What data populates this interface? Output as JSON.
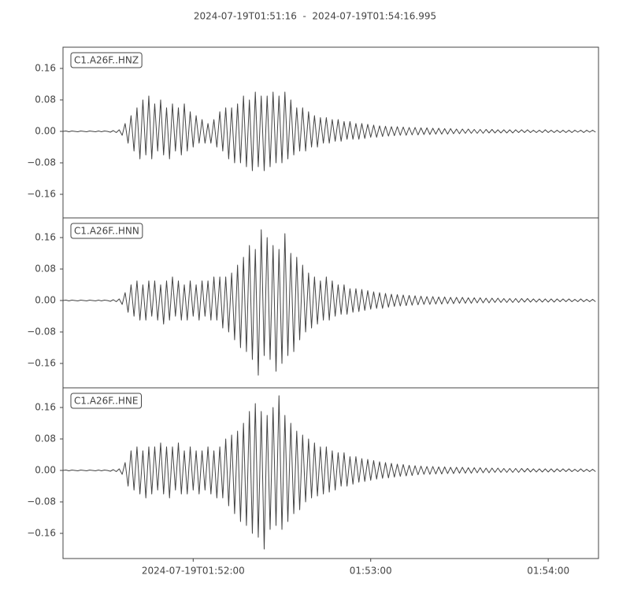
{
  "chart_data": [
    {
      "type": "line",
      "title": "2024-07-19T01:51:16  -  2024-07-19T01:54:16.995",
      "label": "C1.A26F..HNZ",
      "x": [
        0,
        1,
        2,
        3,
        4,
        5,
        6,
        7,
        8,
        9,
        10,
        11,
        12,
        13,
        14,
        15,
        16,
        17,
        18,
        19,
        20,
        21,
        22,
        23,
        24,
        25,
        26,
        27,
        28,
        29,
        30,
        31,
        32,
        33,
        34,
        35,
        36,
        37,
        38,
        39,
        40,
        41,
        42,
        43,
        44,
        45,
        46,
        47,
        48,
        49,
        50,
        51,
        52,
        53,
        54,
        55,
        56,
        57,
        58,
        59,
        60,
        61,
        62,
        63,
        64,
        65,
        66,
        67,
        68,
        69,
        70,
        71,
        72,
        73,
        74,
        75,
        76,
        77,
        78,
        79,
        80,
        81,
        82,
        83,
        84,
        85,
        86,
        87,
        88,
        89,
        90,
        91,
        92,
        93,
        94,
        95,
        96,
        97,
        98,
        99,
        100,
        101,
        102,
        103,
        104,
        105,
        106,
        107,
        108,
        109,
        110,
        111,
        112,
        113,
        114,
        115,
        116,
        117,
        118,
        119,
        120,
        121,
        122,
        123,
        124,
        125,
        126,
        127,
        128,
        129,
        130,
        131,
        132,
        133,
        134,
        135,
        136,
        137,
        138,
        139,
        140,
        141,
        142,
        143,
        144,
        145,
        146,
        147,
        148,
        149,
        150,
        151,
        152,
        153,
        154,
        155,
        156,
        157,
        158,
        159,
        160,
        161,
        162,
        163,
        164,
        165,
        166,
        167,
        168,
        169,
        170,
        171,
        172,
        173,
        174,
        175,
        176,
        177,
        178,
        179,
        180
      ],
      "series": [
        {
          "color": "#444444",
          "values": [
            0,
            0.001,
            -0.001,
            0.001,
            0,
            -0.001,
            0.001,
            0,
            -0.001,
            0.001,
            0,
            -0.001,
            0.001,
            -0.001,
            0.001,
            0,
            -0.002,
            0.002,
            -0.003,
            0.004,
            -0.01,
            0.02,
            -0.03,
            0.04,
            -0.05,
            0.06,
            -0.07,
            0.08,
            -0.06,
            0.09,
            -0.07,
            0.07,
            -0.05,
            0.08,
            -0.06,
            0.06,
            -0.07,
            0.07,
            -0.05,
            0.06,
            -0.06,
            0.07,
            -0.05,
            0.05,
            -0.04,
            0.04,
            -0.03,
            0.03,
            -0.03,
            0.02,
            -0.03,
            0.03,
            -0.04,
            0.05,
            -0.05,
            0.06,
            -0.07,
            0.06,
            -0.08,
            0.07,
            -0.08,
            0.09,
            -0.09,
            0.08,
            -0.1,
            0.1,
            -0.09,
            0.09,
            -0.1,
            0.09,
            -0.09,
            0.1,
            -0.08,
            0.09,
            -0.08,
            0.1,
            -0.07,
            0.08,
            -0.06,
            0.06,
            -0.05,
            0.06,
            -0.05,
            0.05,
            -0.04,
            0.04,
            -0.04,
            0.035,
            -0.03,
            0.035,
            -0.03,
            0.03,
            -0.025,
            0.03,
            -0.025,
            0.025,
            -0.02,
            0.025,
            -0.02,
            0.02,
            -0.02,
            0.02,
            -0.018,
            0.018,
            -0.015,
            0.016,
            -0.015,
            0.014,
            -0.013,
            0.013,
            -0.012,
            0.012,
            -0.011,
            0.012,
            -0.01,
            0.011,
            -0.01,
            0.01,
            -0.009,
            0.01,
            -0.009,
            0.009,
            -0.008,
            0.009,
            -0.008,
            0.008,
            -0.007,
            0.008,
            -0.007,
            0.007,
            -0.007,
            0.007,
            -0.006,
            0.006,
            -0.006,
            0.006,
            -0.005,
            0.006,
            -0.005,
            0.005,
            -0.005,
            0.005,
            -0.005,
            0.005,
            -0.004,
            0.005,
            -0.004,
            0.004,
            -0.004,
            0.004,
            -0.004,
            0.004,
            -0.004,
            0.004,
            -0.003,
            0.004,
            -0.003,
            0.004,
            -0.003,
            0.003,
            -0.003,
            0.003,
            -0.003,
            0.004,
            -0.003,
            0.003,
            -0.003,
            0.003,
            -0.003,
            0.003,
            -0.003,
            0.003,
            -0.003,
            0.003,
            -0.002,
            0.003,
            -0.003,
            0.003,
            -0.002,
            0.003,
            -0.002
          ]
        }
      ],
      "xlim": [
        0,
        180.995
      ],
      "ylim": [
        -0.22,
        0.214
      ],
      "yticks": [
        0.16,
        0.08,
        {
          "value": 0,
          "label": "0.00"
        },
        {
          "value": -0.08,
          "label": "−0.08"
        },
        {
          "value": -0.16,
          "label": "−0.16"
        }
      ]
    },
    {
      "type": "line",
      "label": "C1.A26F..HNN",
      "x": [
        0,
        1,
        2,
        3,
        4,
        5,
        6,
        7,
        8,
        9,
        10,
        11,
        12,
        13,
        14,
        15,
        16,
        17,
        18,
        19,
        20,
        21,
        22,
        23,
        24,
        25,
        26,
        27,
        28,
        29,
        30,
        31,
        32,
        33,
        34,
        35,
        36,
        37,
        38,
        39,
        40,
        41,
        42,
        43,
        44,
        45,
        46,
        47,
        48,
        49,
        50,
        51,
        52,
        53,
        54,
        55,
        56,
        57,
        58,
        59,
        60,
        61,
        62,
        63,
        64,
        65,
        66,
        67,
        68,
        69,
        70,
        71,
        72,
        73,
        74,
        75,
        76,
        77,
        78,
        79,
        80,
        81,
        82,
        83,
        84,
        85,
        86,
        87,
        88,
        89,
        90,
        91,
        92,
        93,
        94,
        95,
        96,
        97,
        98,
        99,
        100,
        101,
        102,
        103,
        104,
        105,
        106,
        107,
        108,
        109,
        110,
        111,
        112,
        113,
        114,
        115,
        116,
        117,
        118,
        119,
        120,
        121,
        122,
        123,
        124,
        125,
        126,
        127,
        128,
        129,
        130,
        131,
        132,
        133,
        134,
        135,
        136,
        137,
        138,
        139,
        140,
        141,
        142,
        143,
        144,
        145,
        146,
        147,
        148,
        149,
        150,
        151,
        152,
        153,
        154,
        155,
        156,
        157,
        158,
        159,
        160,
        161,
        162,
        163,
        164,
        165,
        166,
        167,
        168,
        169,
        170,
        171,
        172,
        173,
        174,
        175,
        176,
        177,
        178,
        179,
        180
      ],
      "series": [
        {
          "color": "#444444",
          "values": [
            0,
            0.001,
            -0.001,
            0.001,
            0,
            -0.001,
            0.001,
            0,
            -0.001,
            0.001,
            0,
            -0.001,
            0.001,
            -0.001,
            0.001,
            0,
            -0.002,
            0.002,
            -0.003,
            0.004,
            -0.01,
            0.02,
            -0.03,
            0.04,
            -0.04,
            0.05,
            -0.05,
            0.04,
            -0.05,
            0.05,
            -0.04,
            0.05,
            -0.05,
            0.04,
            -0.06,
            0.05,
            -0.05,
            0.06,
            -0.04,
            0.05,
            -0.05,
            0.04,
            -0.05,
            0.05,
            -0.04,
            0.04,
            -0.05,
            0.05,
            -0.04,
            0.05,
            -0.05,
            0.06,
            -0.05,
            0.06,
            -0.07,
            0.06,
            -0.08,
            0.07,
            -0.1,
            0.09,
            -0.12,
            0.11,
            -0.13,
            0.14,
            -0.15,
            0.13,
            -0.19,
            0.18,
            -0.14,
            0.16,
            -0.15,
            0.14,
            -0.18,
            0.13,
            -0.16,
            0.17,
            -0.14,
            0.12,
            -0.13,
            0.11,
            -0.1,
            0.09,
            -0.08,
            0.07,
            -0.07,
            0.06,
            -0.06,
            0.05,
            -0.05,
            0.06,
            -0.05,
            0.05,
            -0.04,
            0.04,
            -0.035,
            0.04,
            -0.035,
            0.03,
            -0.03,
            0.03,
            -0.028,
            0.028,
            -0.025,
            0.025,
            -0.022,
            0.022,
            -0.02,
            0.02,
            -0.02,
            0.018,
            -0.017,
            0.016,
            -0.015,
            0.015,
            -0.014,
            0.014,
            -0.013,
            0.013,
            -0.012,
            0.012,
            -0.011,
            0.011,
            -0.01,
            0.01,
            -0.01,
            0.01,
            -0.009,
            0.009,
            -0.009,
            0.009,
            -0.008,
            0.008,
            -0.008,
            0.008,
            -0.007,
            0.008,
            -0.007,
            0.007,
            -0.007,
            0.007,
            -0.006,
            0.007,
            -0.006,
            0.006,
            -0.006,
            0.006,
            -0.005,
            0.006,
            -0.005,
            0.005,
            -0.005,
            0.005,
            -0.005,
            0.005,
            -0.005,
            0.005,
            -0.004,
            0.005,
            -0.004,
            0.004,
            -0.004,
            0.004,
            -0.004,
            0.004,
            -0.004,
            0.004,
            -0.004,
            0.004,
            -0.003,
            0.004,
            -0.003,
            0.004,
            -0.003,
            0.003,
            -0.003,
            0.004,
            -0.003,
            0.003,
            -0.003,
            0.003,
            -0.003
          ]
        }
      ],
      "xlim": [
        0,
        180.995
      ],
      "ylim": [
        -0.222,
        0.21
      ],
      "yticks": [
        0.16,
        0.08,
        {
          "value": 0,
          "label": "0.00"
        },
        {
          "value": -0.08,
          "label": "−0.08"
        },
        {
          "value": -0.16,
          "label": "−0.16"
        }
      ]
    },
    {
      "type": "line",
      "label": "C1.A26F..HNE",
      "x": [
        0,
        1,
        2,
        3,
        4,
        5,
        6,
        7,
        8,
        9,
        10,
        11,
        12,
        13,
        14,
        15,
        16,
        17,
        18,
        19,
        20,
        21,
        22,
        23,
        24,
        25,
        26,
        27,
        28,
        29,
        30,
        31,
        32,
        33,
        34,
        35,
        36,
        37,
        38,
        39,
        40,
        41,
        42,
        43,
        44,
        45,
        46,
        47,
        48,
        49,
        50,
        51,
        52,
        53,
        54,
        55,
        56,
        57,
        58,
        59,
        60,
        61,
        62,
        63,
        64,
        65,
        66,
        67,
        68,
        69,
        70,
        71,
        72,
        73,
        74,
        75,
        76,
        77,
        78,
        79,
        80,
        81,
        82,
        83,
        84,
        85,
        86,
        87,
        88,
        89,
        90,
        91,
        92,
        93,
        94,
        95,
        96,
        97,
        98,
        99,
        100,
        101,
        102,
        103,
        104,
        105,
        106,
        107,
        108,
        109,
        110,
        111,
        112,
        113,
        114,
        115,
        116,
        117,
        118,
        119,
        120,
        121,
        122,
        123,
        124,
        125,
        126,
        127,
        128,
        129,
        130,
        131,
        132,
        133,
        134,
        135,
        136,
        137,
        138,
        139,
        140,
        141,
        142,
        143,
        144,
        145,
        146,
        147,
        148,
        149,
        150,
        151,
        152,
        153,
        154,
        155,
        156,
        157,
        158,
        159,
        160,
        161,
        162,
        163,
        164,
        165,
        166,
        167,
        168,
        169,
        170,
        171,
        172,
        173,
        174,
        175,
        176,
        177,
        178,
        179,
        180
      ],
      "series": [
        {
          "color": "#444444",
          "values": [
            0,
            0.001,
            -0.001,
            0.001,
            0,
            -0.001,
            0.001,
            0,
            -0.001,
            0.001,
            0,
            -0.001,
            0.001,
            -0.001,
            0.001,
            0,
            -0.002,
            0.002,
            -0.003,
            0.004,
            -0.01,
            0.02,
            -0.04,
            0.05,
            -0.05,
            0.06,
            -0.06,
            0.05,
            -0.07,
            0.06,
            -0.06,
            0.06,
            -0.05,
            0.07,
            -0.06,
            0.06,
            -0.07,
            0.06,
            -0.05,
            0.07,
            -0.06,
            0.05,
            -0.06,
            0.06,
            -0.05,
            0.05,
            -0.06,
            0.05,
            -0.05,
            0.06,
            -0.06,
            0.05,
            -0.07,
            0.06,
            -0.07,
            0.08,
            -0.09,
            0.09,
            -0.11,
            0.1,
            -0.13,
            0.12,
            -0.14,
            0.15,
            -0.16,
            0.17,
            -0.17,
            0.15,
            -0.2,
            0.14,
            -0.15,
            0.16,
            -0.14,
            0.19,
            -0.15,
            0.14,
            -0.13,
            0.12,
            -0.11,
            0.1,
            -0.1,
            0.09,
            -0.08,
            0.08,
            -0.07,
            0.07,
            -0.065,
            0.06,
            -0.06,
            0.06,
            -0.055,
            0.05,
            -0.05,
            0.045,
            -0.04,
            0.045,
            -0.04,
            0.035,
            -0.035,
            0.035,
            -0.03,
            0.03,
            -0.028,
            0.028,
            -0.025,
            0.025,
            -0.022,
            0.022,
            -0.02,
            0.02,
            -0.019,
            0.018,
            -0.017,
            0.016,
            -0.015,
            0.015,
            -0.014,
            0.013,
            -0.013,
            0.012,
            -0.011,
            0.011,
            -0.01,
            0.01,
            -0.01,
            0.01,
            -0.009,
            0.009,
            -0.009,
            0.009,
            -0.008,
            0.008,
            -0.008,
            0.008,
            -0.007,
            0.008,
            -0.007,
            0.007,
            -0.007,
            0.007,
            -0.006,
            0.007,
            -0.006,
            0.006,
            -0.006,
            0.006,
            -0.005,
            0.006,
            -0.005,
            0.005,
            -0.005,
            0.005,
            -0.005,
            0.005,
            -0.005,
            0.005,
            -0.004,
            0.005,
            -0.004,
            0.004,
            -0.004,
            0.004,
            -0.004,
            0.004,
            -0.004,
            0.004,
            -0.004,
            0.004,
            -0.003,
            0.004,
            -0.003,
            0.004,
            -0.003,
            0.003,
            -0.003,
            0.004,
            -0.003,
            0.003,
            -0.003,
            0.003,
            -0.003
          ]
        }
      ],
      "xlim": [
        0,
        180.995
      ],
      "ylim": [
        -0.224,
        0.21
      ],
      "yticks": [
        0.16,
        0.08,
        {
          "value": 0,
          "label": "0.00"
        },
        {
          "value": -0.08,
          "label": "−0.08"
        },
        {
          "value": -0.16,
          "label": "−0.16"
        }
      ],
      "xticks": [
        {
          "value": 44,
          "label": "2024-07-19T01:52:00"
        },
        {
          "value": 104,
          "label": "01:53:00"
        },
        {
          "value": 164,
          "label": "01:54:00"
        }
      ]
    }
  ]
}
